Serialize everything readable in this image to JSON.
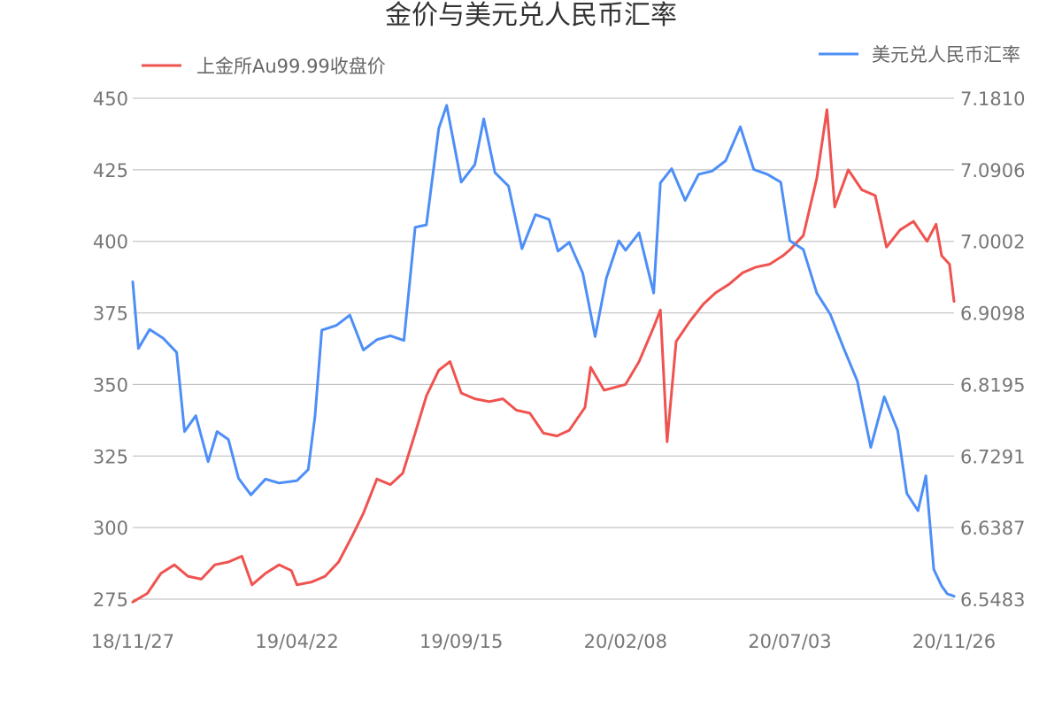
{
  "chart_data": {
    "type": "line",
    "title": "金价与美元兑人民币汇率",
    "xlabel": "",
    "ylabel": "",
    "grid": true,
    "legend_position": "top",
    "x_ticks": [
      "18/11/27",
      "19/04/22",
      "19/09/15",
      "20/02/08",
      "20/07/03",
      "20/11/26"
    ],
    "left_axis": {
      "ticks": [
        "450",
        "425",
        "400",
        "375",
        "350",
        "325",
        "300",
        "275"
      ],
      "ylim": [
        275,
        450
      ]
    },
    "right_axis": {
      "ticks": [
        "7.1810",
        "7.0906",
        "7.0002",
        "6.9098",
        "6.8195",
        "6.7291",
        "6.6387",
        "6.5483"
      ],
      "ylim": [
        6.5483,
        7.181
      ]
    },
    "series": [
      {
        "name": "上金所Au99.99收盘价",
        "axis": "left",
        "color": "#ef5350",
        "points": [
          [
            "18/11/27",
            274
          ],
          [
            "18/12/10",
            277
          ],
          [
            "18/12/22",
            284
          ],
          [
            "19/01/03",
            287
          ],
          [
            "19/01/15",
            283
          ],
          [
            "19/01/27",
            282
          ],
          [
            "19/02/08",
            287
          ],
          [
            "19/02/20",
            288
          ],
          [
            "19/03/04",
            290
          ],
          [
            "19/03/13",
            280
          ],
          [
            "19/03/25",
            284
          ],
          [
            "19/04/06",
            287
          ],
          [
            "19/04/17",
            285
          ],
          [
            "19/04/22",
            280
          ],
          [
            "19/05/05",
            281
          ],
          [
            "19/05/17",
            283
          ],
          [
            "19/05/29",
            288
          ],
          [
            "19/06/10",
            297
          ],
          [
            "19/06/20",
            305
          ],
          [
            "19/07/02",
            317
          ],
          [
            "19/07/14",
            315
          ],
          [
            "19/07/25",
            319
          ],
          [
            "19/08/05",
            333
          ],
          [
            "19/08/15",
            346
          ],
          [
            "19/08/26",
            355
          ],
          [
            "19/09/05",
            358
          ],
          [
            "19/09/15",
            347
          ],
          [
            "19/09/27",
            345
          ],
          [
            "19/10/10",
            344
          ],
          [
            "19/10/22",
            345
          ],
          [
            "19/11/03",
            341
          ],
          [
            "19/11/15",
            340
          ],
          [
            "19/11/27",
            333
          ],
          [
            "19/12/09",
            332
          ],
          [
            "19/12/20",
            334
          ],
          [
            "20/01/03",
            342
          ],
          [
            "20/01/08",
            356
          ],
          [
            "20/01/20",
            348
          ],
          [
            "20/02/08",
            350
          ],
          [
            "20/02/20",
            358
          ],
          [
            "20/03/04",
            370
          ],
          [
            "20/03/10",
            376
          ],
          [
            "20/03/16",
            330
          ],
          [
            "20/03/24",
            365
          ],
          [
            "20/04/05",
            372
          ],
          [
            "20/04/17",
            378
          ],
          [
            "20/04/28",
            382
          ],
          [
            "20/05/10",
            385
          ],
          [
            "20/05/22",
            389
          ],
          [
            "20/06/03",
            391
          ],
          [
            "20/06/15",
            392
          ],
          [
            "20/06/27",
            395
          ],
          [
            "20/07/03",
            397
          ],
          [
            "20/07/15",
            402
          ],
          [
            "20/07/27",
            422
          ],
          [
            "20/08/05",
            446
          ],
          [
            "20/08/12",
            412
          ],
          [
            "20/08/24",
            425
          ],
          [
            "20/09/05",
            418
          ],
          [
            "20/09/17",
            416
          ],
          [
            "20/09/27",
            398
          ],
          [
            "20/10/09",
            404
          ],
          [
            "20/10/21",
            407
          ],
          [
            "20/11/02",
            400
          ],
          [
            "20/11/10",
            406
          ],
          [
            "20/11/15",
            395
          ],
          [
            "20/11/22",
            392
          ],
          [
            "20/11/26",
            379
          ]
        ]
      },
      {
        "name": "美元兑人民币汇率",
        "axis": "right",
        "color": "#4d8ef7",
        "points": [
          [
            "18/11/27",
            6.949
          ],
          [
            "18/12/02",
            6.865
          ],
          [
            "18/12/12",
            6.889
          ],
          [
            "18/12/24",
            6.878
          ],
          [
            "19/01/05",
            6.86
          ],
          [
            "19/01/12",
            6.76
          ],
          [
            "19/01/22",
            6.78
          ],
          [
            "19/02/02",
            6.722
          ],
          [
            "19/02/10",
            6.76
          ],
          [
            "19/02/20",
            6.75
          ],
          [
            "19/03/01",
            6.701
          ],
          [
            "19/03/12",
            6.68
          ],
          [
            "19/03/25",
            6.7
          ],
          [
            "19/04/06",
            6.695
          ],
          [
            "19/04/22",
            6.698
          ],
          [
            "19/05/02",
            6.712
          ],
          [
            "19/05/08",
            6.779
          ],
          [
            "19/05/14",
            6.888
          ],
          [
            "19/05/27",
            6.894
          ],
          [
            "19/06/08",
            6.907
          ],
          [
            "19/06/20",
            6.863
          ],
          [
            "19/07/02",
            6.876
          ],
          [
            "19/07/14",
            6.881
          ],
          [
            "19/07/26",
            6.875
          ],
          [
            "19/08/05",
            7.018
          ],
          [
            "19/08/15",
            7.021
          ],
          [
            "19/08/26",
            7.143
          ],
          [
            "19/09/02",
            7.172
          ],
          [
            "19/09/15",
            7.075
          ],
          [
            "19/09/27",
            7.097
          ],
          [
            "19/10/05",
            7.155
          ],
          [
            "19/10/15",
            7.087
          ],
          [
            "19/10/27",
            7.07
          ],
          [
            "19/11/08",
            6.991
          ],
          [
            "19/11/20",
            7.034
          ],
          [
            "19/12/02",
            7.028
          ],
          [
            "19/12/10",
            6.988
          ],
          [
            "19/12/20",
            6.999
          ],
          [
            "20/01/01",
            6.96
          ],
          [
            "20/01/12",
            6.88
          ],
          [
            "20/01/22",
            6.954
          ],
          [
            "20/02/02",
            7.001
          ],
          [
            "20/02/08",
            6.989
          ],
          [
            "20/02/20",
            7.011
          ],
          [
            "20/03/04",
            6.935
          ],
          [
            "20/03/10",
            7.074
          ],
          [
            "20/03/20",
            7.092
          ],
          [
            "20/04/01",
            7.052
          ],
          [
            "20/04/13",
            7.085
          ],
          [
            "20/04/25",
            7.089
          ],
          [
            "20/05/07",
            7.102
          ],
          [
            "20/05/20",
            7.145
          ],
          [
            "20/06/01",
            7.091
          ],
          [
            "20/06/13",
            7.085
          ],
          [
            "20/06/25",
            7.075
          ],
          [
            "20/07/03",
            7.001
          ],
          [
            "20/07/15",
            6.99
          ],
          [
            "20/07/27",
            6.935
          ],
          [
            "20/08/08",
            6.908
          ],
          [
            "20/08/20",
            6.865
          ],
          [
            "20/09/01",
            6.824
          ],
          [
            "20/09/13",
            6.74
          ],
          [
            "20/09/25",
            6.804
          ],
          [
            "20/10/07",
            6.761
          ],
          [
            "20/10/15",
            6.682
          ],
          [
            "20/10/25",
            6.66
          ],
          [
            "20/11/01",
            6.704
          ],
          [
            "20/11/08",
            6.586
          ],
          [
            "20/11/15",
            6.565
          ],
          [
            "20/11/20",
            6.555
          ],
          [
            "20/11/26",
            6.552
          ]
        ]
      }
    ]
  }
}
